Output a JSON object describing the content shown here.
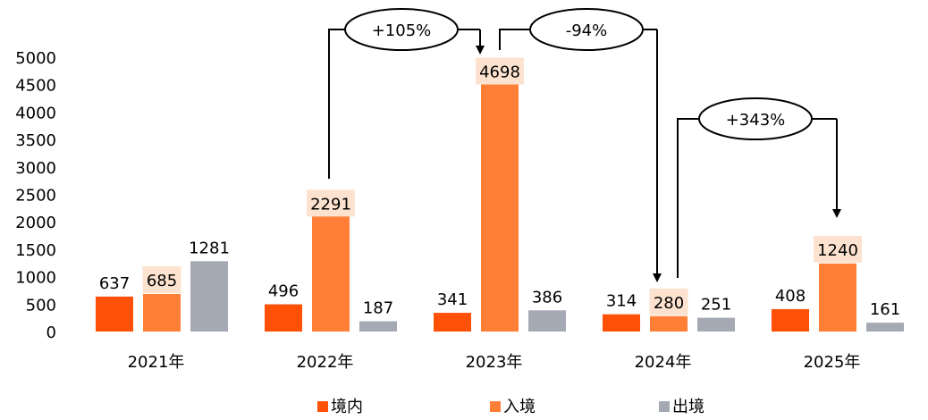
{
  "chart_data": {
    "type": "bar",
    "title": "",
    "xlabel": "",
    "ylabel": "",
    "categories": [
      "2021年",
      "2022年",
      "2023年",
      "2024年",
      "2025年"
    ],
    "ylim": [
      0,
      5000
    ],
    "yticks": [
      "0",
      "500",
      "1000",
      "1500",
      "2000",
      "2500",
      "3000",
      "3500",
      "4000",
      "4500",
      "5000"
    ],
    "grid": false,
    "legend_position": "bottom",
    "series": [
      {
        "name": "境内",
        "color": "#FF5106",
        "values": [
          637,
          496,
          341,
          314,
          408
        ],
        "labels": [
          "637",
          "496",
          "341",
          "314",
          "408"
        ]
      },
      {
        "name": "入境",
        "color": "#FF7F37",
        "values": [
          685,
          2291,
          4698,
          280,
          1240
        ],
        "labels": [
          "685",
          "2291",
          "4698",
          "280",
          "1240"
        ],
        "label_highlight": "#FDE3CF"
      },
      {
        "name": "出境",
        "color": "#A5A9B4",
        "values": [
          1281,
          187,
          386,
          251,
          161
        ],
        "labels": [
          "1281",
          "187",
          "386",
          "251",
          "161"
        ]
      }
    ],
    "annotations": [
      {
        "text": "+105%",
        "from": "2022年",
        "to": "2023年",
        "series": "入境"
      },
      {
        "text": "-94%",
        "from": "2023年",
        "to": "2024年",
        "series": "入境"
      },
      {
        "text": "+343%",
        "from": "2024年",
        "to": "2025年",
        "series": "入境"
      }
    ]
  }
}
